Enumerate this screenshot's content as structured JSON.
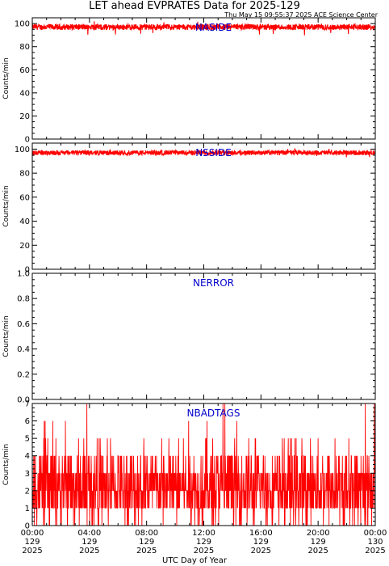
{
  "header": {
    "title": "LET ahead EVPRATES Data for 2025-129",
    "timestamp": "Thu May 15 09:55:37 2025 ACE Science Center"
  },
  "colors": {
    "series": "#ff0000",
    "panel_label": "#0000cc",
    "axes": "#000000"
  },
  "chart_data": [
    {
      "type": "line",
      "title": "NASIDE",
      "ylabel": "Counts/min",
      "ylim": [
        0,
        105
      ],
      "yticks": [
        0,
        20,
        40,
        60,
        80,
        100
      ],
      "ytick_labels": [
        "0",
        "20",
        "40",
        "60",
        "80",
        "100"
      ],
      "series": [
        {
          "values_summary": {
            "typical": 97,
            "min": 89,
            "max": 102
          }
        }
      ]
    },
    {
      "type": "line",
      "title": "NSSIDE",
      "ylabel": "Counts/min",
      "ylim": [
        0,
        105
      ],
      "yticks": [
        0,
        20,
        40,
        60,
        80,
        100
      ],
      "ytick_labels": [
        "0",
        "20",
        "40",
        "60",
        "80",
        "100"
      ],
      "series": [
        {
          "values_summary": {
            "typical": 97,
            "min": 93,
            "max": 101
          }
        }
      ]
    },
    {
      "type": "line",
      "title": "NERROR",
      "ylabel": "Counts/min",
      "ylim": [
        0,
        1
      ],
      "yticks": [
        0,
        0.2,
        0.4,
        0.6,
        0.8,
        1.0
      ],
      "ytick_labels": [
        "0.0",
        "0.2",
        "0.4",
        "0.6",
        "0.8",
        "1.0"
      ],
      "series": [
        {
          "values_summary": {
            "typical": 0,
            "min": 0,
            "max": 0
          }
        }
      ]
    },
    {
      "type": "line",
      "title": "NBADTAGS",
      "ylabel": "Counts/min",
      "ylim": [
        0,
        7
      ],
      "yticks": [
        0,
        1,
        2,
        3,
        4,
        5,
        6,
        7
      ],
      "ytick_labels": [
        "0",
        "1",
        "2",
        "3",
        "4",
        "5",
        "6",
        "7"
      ],
      "series": [
        {
          "values_summary": {
            "typical": 2,
            "min": 0,
            "max": 7
          }
        }
      ]
    }
  ],
  "x_axis": {
    "label": "UTC Day of Year",
    "xlim_hours": [
      0,
      24
    ],
    "ticks": [
      {
        "hour": 0,
        "time": "00:00",
        "doy": "129",
        "year": "2025"
      },
      {
        "hour": 4,
        "time": "04:00",
        "doy": "129",
        "year": "2025"
      },
      {
        "hour": 8,
        "time": "08:00",
        "doy": "129",
        "year": "2025"
      },
      {
        "hour": 12,
        "time": "12:00",
        "doy": "129",
        "year": "2025"
      },
      {
        "hour": 16,
        "time": "16:00",
        "doy": "129",
        "year": "2025"
      },
      {
        "hour": 20,
        "time": "20:00",
        "doy": "129",
        "year": "2025"
      },
      {
        "hour": 24,
        "time": "00:00",
        "doy": "130",
        "year": "2025"
      }
    ]
  }
}
